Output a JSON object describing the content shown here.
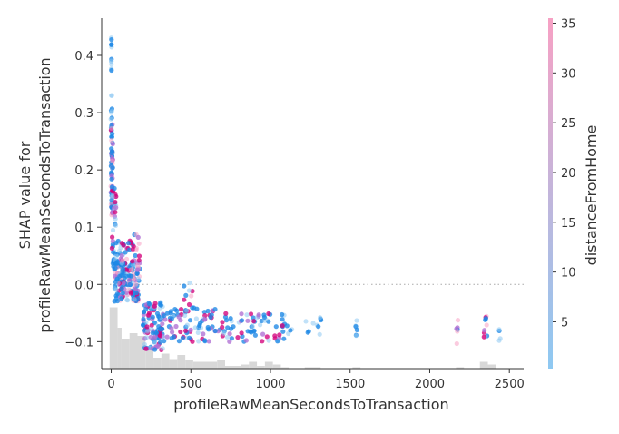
{
  "chart_data": {
    "type": "scatter",
    "title": "",
    "xlabel": "profileRawMeanSecondsToTransaction",
    "ylabel_lines": [
      "SHAP value for",
      "profileRawMeanSecondsToTransaction"
    ],
    "xlim": [
      -60,
      2590
    ],
    "ylim": [
      -0.147,
      0.465
    ],
    "xticks": [
      0,
      500,
      1000,
      1500,
      2000,
      2500
    ],
    "yticks": [
      -0.1,
      0.0,
      0.1,
      0.2,
      0.3,
      0.4
    ],
    "ytick_labels": [
      "−0.1",
      "0.0",
      "0.1",
      "0.2",
      "0.3",
      "0.4"
    ],
    "zero_line": true,
    "grid": false,
    "colorbar": {
      "label": "distanceFromHome",
      "range": [
        0.3,
        35.5
      ],
      "ticks": [
        5,
        10,
        15,
        20,
        25,
        30,
        35
      ],
      "low_color": "#8ec9f2",
      "high_color": "#f7a1c4"
    },
    "point_colors": {
      "blue": "#1e88e5",
      "light_blue": "#8ec9f2",
      "magenta": "#d4047c",
      "pink": "#f7a1c4",
      "purple": "#b06fd4"
    },
    "histogram": {
      "color": "#d8d8d8",
      "bins": [
        {
          "x0": -10,
          "x1": 40,
          "frac": 0.45
        },
        {
          "x0": 40,
          "x1": 65,
          "frac": 0.3
        },
        {
          "x0": 65,
          "x1": 115,
          "frac": 0.22
        },
        {
          "x0": 115,
          "x1": 165,
          "frac": 0.26
        },
        {
          "x0": 165,
          "x1": 215,
          "frac": 0.24
        },
        {
          "x0": 215,
          "x1": 265,
          "frac": 0.15
        },
        {
          "x0": 265,
          "x1": 315,
          "frac": 0.08
        },
        {
          "x0": 315,
          "x1": 365,
          "frac": 0.11
        },
        {
          "x0": 365,
          "x1": 415,
          "frac": 0.07
        },
        {
          "x0": 415,
          "x1": 465,
          "frac": 0.1
        },
        {
          "x0": 465,
          "x1": 515,
          "frac": 0.06
        },
        {
          "x0": 515,
          "x1": 565,
          "frac": 0.05
        },
        {
          "x0": 565,
          "x1": 665,
          "frac": 0.05
        },
        {
          "x0": 665,
          "x1": 715,
          "frac": 0.06
        },
        {
          "x0": 715,
          "x1": 815,
          "frac": 0.02
        },
        {
          "x0": 815,
          "x1": 865,
          "frac": 0.03
        },
        {
          "x0": 865,
          "x1": 915,
          "frac": 0.05
        },
        {
          "x0": 915,
          "x1": 965,
          "frac": 0.02
        },
        {
          "x0": 965,
          "x1": 1015,
          "frac": 0.05
        },
        {
          "x0": 1015,
          "x1": 1065,
          "frac": 0.03
        },
        {
          "x0": 1065,
          "x1": 1115,
          "frac": 0.01
        },
        {
          "x0": 1215,
          "x1": 1265,
          "frac": 0.01
        },
        {
          "x0": 1265,
          "x1": 1315,
          "frac": 0.01
        },
        {
          "x0": 1515,
          "x1": 1565,
          "frac": 0.01
        },
        {
          "x0": 2165,
          "x1": 2215,
          "frac": 0.01
        },
        {
          "x0": 2315,
          "x1": 2365,
          "frac": 0.05
        },
        {
          "x0": 2365,
          "x1": 2415,
          "frac": 0.03
        }
      ]
    },
    "clusters": [
      {
        "x": [
          0,
          2
        ],
        "y": [
          0.36,
          0.44
        ],
        "n": 12,
        "colors": [
          "blue",
          "light_blue"
        ]
      },
      {
        "x": [
          -2,
          5
        ],
        "y": [
          0.26,
          0.36
        ],
        "n": 10,
        "colors": [
          "light_blue",
          "blue"
        ]
      },
      {
        "x": [
          -2,
          10
        ],
        "y": [
          0.12,
          0.28
        ],
        "n": 60,
        "colors": [
          "magenta",
          "blue",
          "purple",
          "pink",
          "blue"
        ]
      },
      {
        "x": [
          5,
          30
        ],
        "y": [
          0.05,
          0.18
        ],
        "n": 28,
        "colors": [
          "blue",
          "light_blue",
          "purple",
          "magenta"
        ]
      },
      {
        "x": [
          10,
          80
        ],
        "y": [
          0.03,
          0.08
        ],
        "n": 25,
        "colors": [
          "blue",
          "light_blue",
          "blue"
        ]
      },
      {
        "x": [
          20,
          180
        ],
        "y": [
          -0.03,
          0.045
        ],
        "n": 170,
        "colors": [
          "blue",
          "blue",
          "blue",
          "light_blue",
          "magenta",
          "purple",
          "pink"
        ]
      },
      {
        "x": [
          60,
          180
        ],
        "y": [
          0.04,
          0.09
        ],
        "n": 25,
        "colors": [
          "pink",
          "purple",
          "magenta",
          "blue"
        ]
      },
      {
        "x": [
          200,
          330
        ],
        "y": [
          -0.115,
          -0.03
        ],
        "n": 110,
        "colors": [
          "blue",
          "blue",
          "light_blue",
          "magenta",
          "purple"
        ]
      },
      {
        "x": [
          330,
          700
        ],
        "y": [
          -0.1,
          -0.04
        ],
        "n": 90,
        "colors": [
          "blue",
          "blue",
          "light_blue",
          "magenta",
          "purple"
        ]
      },
      {
        "x": [
          450,
          510
        ],
        "y": [
          -0.04,
          0.005
        ],
        "n": 8,
        "colors": [
          "pink",
          "magenta",
          "light_blue",
          "blue"
        ]
      },
      {
        "x": [
          700,
          1100
        ],
        "y": [
          -0.1,
          -0.05
        ],
        "n": 70,
        "colors": [
          "blue",
          "blue",
          "light_blue",
          "magenta",
          "purple"
        ]
      },
      {
        "x": [
          1100,
          1340
        ],
        "y": [
          -0.09,
          -0.055
        ],
        "n": 14,
        "colors": [
          "blue",
          "light_blue"
        ]
      },
      {
        "x": [
          1530,
          1545
        ],
        "y": [
          -0.09,
          -0.055
        ],
        "n": 6,
        "colors": [
          "blue",
          "light_blue"
        ]
      },
      {
        "x": [
          2160,
          2180
        ],
        "y": [
          -0.11,
          -0.045
        ],
        "n": 6,
        "colors": [
          "pink",
          "purple",
          "blue",
          "light_blue"
        ]
      },
      {
        "x": [
          2340,
          2360
        ],
        "y": [
          -0.1,
          -0.055
        ],
        "n": 10,
        "colors": [
          "magenta",
          "pink",
          "blue",
          "purple"
        ]
      },
      {
        "x": [
          2435,
          2450
        ],
        "y": [
          -0.1,
          -0.075
        ],
        "n": 4,
        "colors": [
          "blue",
          "light_blue"
        ]
      }
    ]
  }
}
